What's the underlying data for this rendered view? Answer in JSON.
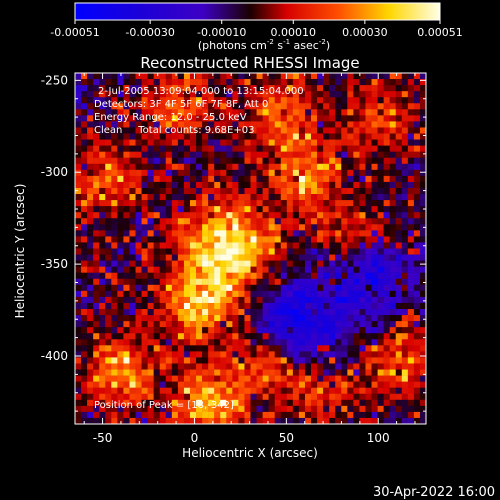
{
  "colorbar": {
    "ticks": [
      "-0.00051",
      "-0.00030",
      "-0.00010",
      "0.00010",
      "0.00030",
      "0.00051"
    ],
    "units_prefix": "(photons cm",
    "units_exp1": "-2",
    "units_mid": " s",
    "units_exp2": "-1",
    "units_mid2": " asec",
    "units_exp3": "-2",
    "units_suffix": ")"
  },
  "chart_data": {
    "type": "heatmap",
    "title": "Reconstructed RHESSI Image",
    "xlabel": "Heliocentric X (arcsec)",
    "ylabel": "Heliocentric Y (arcsec)",
    "xlim": [
      -65,
      126
    ],
    "ylim": [
      -437,
      -246
    ],
    "xticks": [
      -50,
      0,
      50,
      100
    ],
    "yticks": [
      -400,
      -350,
      -300,
      -250
    ],
    "color_range": [
      -0.00051,
      0.00051
    ],
    "annotations": [
      "2-Jul-2005 13:09:04.000 to 13:15:04.000",
      "Detectors: 3F 4F 5F 6F 7F 8F, Att 0",
      "Energy Range: 12.0 - 25.0 keV",
      "Clean     Total counts: 9.68E+03"
    ],
    "peak_label": "Position of Peak = [18,-342]",
    "peak_position": [
      18,
      -342
    ],
    "sources": [
      {
        "x": 18,
        "y": -342,
        "value": 0.00051
      },
      {
        "x": 2,
        "y": -372,
        "value": 0.00036
      },
      {
        "x": -40,
        "y": -410,
        "value": 0.00034
      },
      {
        "x": 8,
        "y": -425,
        "value": 0.00038
      },
      {
        "x": -48,
        "y": -305,
        "value": 0.00025
      },
      {
        "x": -8,
        "y": -262,
        "value": 0.00026
      },
      {
        "x": 48,
        "y": -268,
        "value": 0.00026
      },
      {
        "x": 62,
        "y": -302,
        "value": 0.00032
      },
      {
        "x": 88,
        "y": -336,
        "value": 0.00025
      },
      {
        "x": 100,
        "y": -270,
        "value": 0.00021
      },
      {
        "x": 112,
        "y": -405,
        "value": 0.00022
      },
      {
        "x": 40,
        "y": -402,
        "value": 0.00028
      },
      {
        "x": 70,
        "y": -420,
        "value": 0.0002
      }
    ],
    "negative_regions": [
      {
        "x": 55,
        "y": -382,
        "value": -0.0004
      },
      {
        "x": 95,
        "y": -355,
        "value": -0.0003
      }
    ]
  },
  "footer": {
    "timestamp": "30-Apr-2022 16:00"
  }
}
